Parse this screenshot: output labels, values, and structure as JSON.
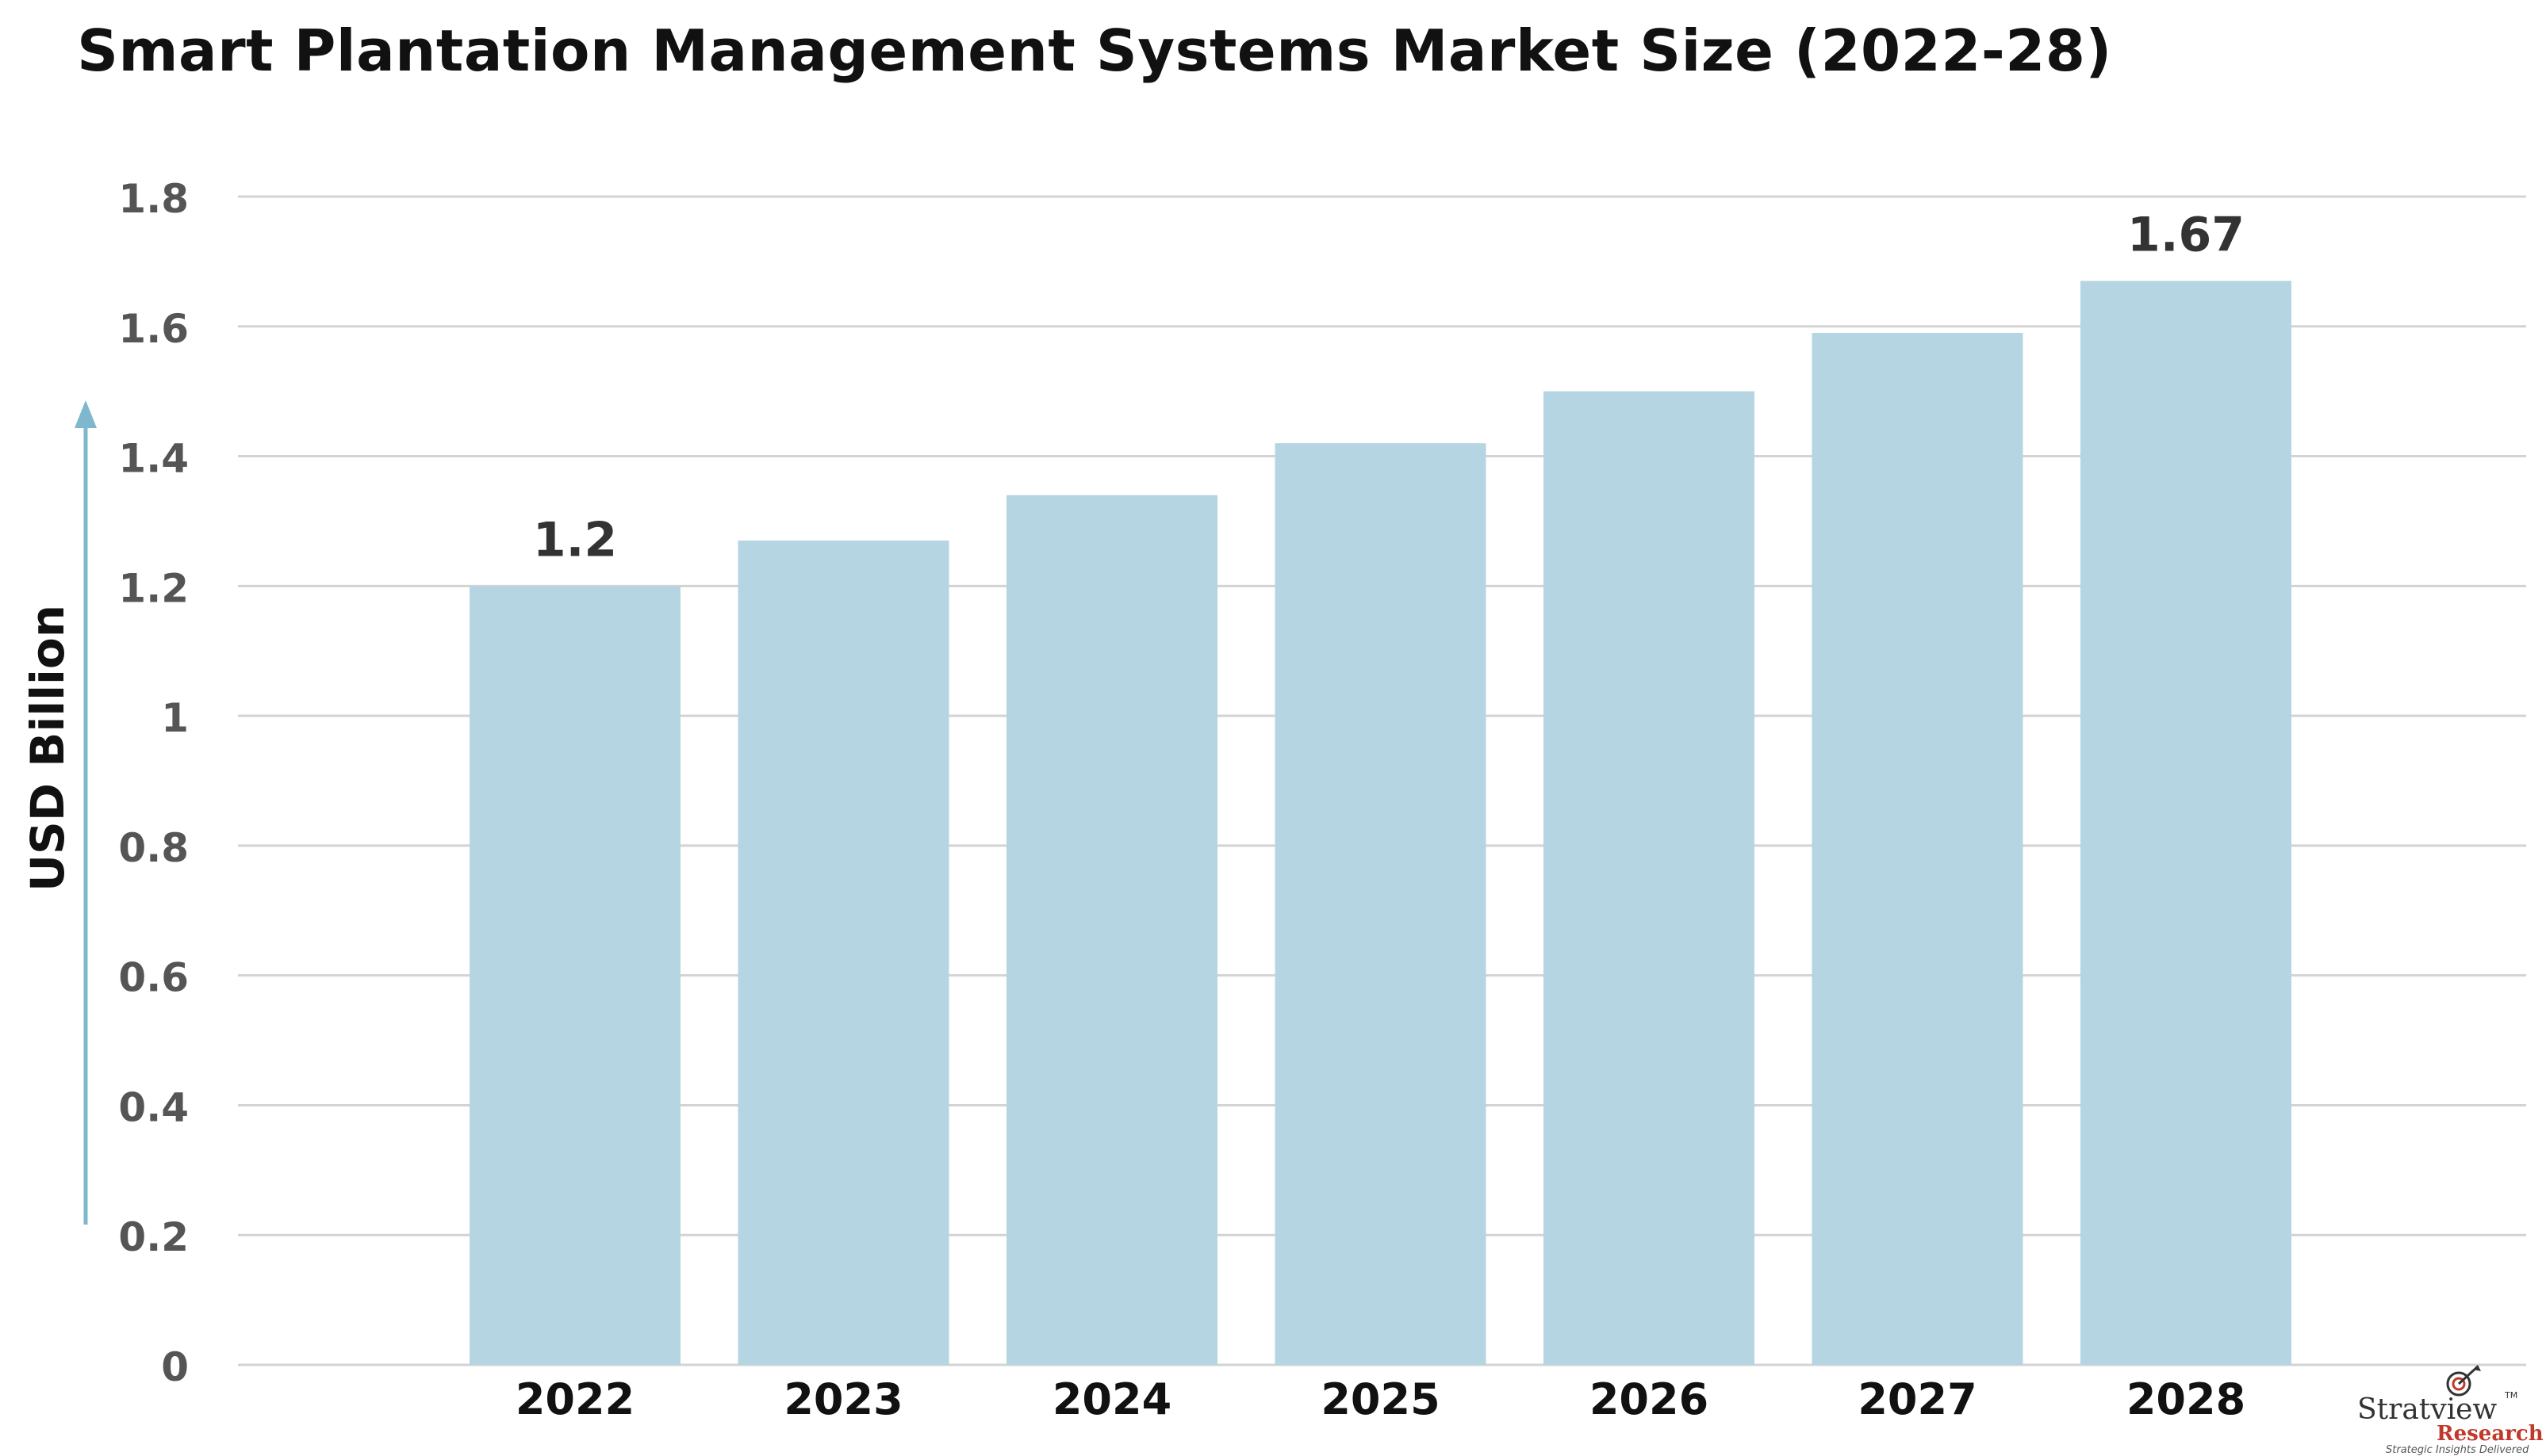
{
  "chart_data": {
    "type": "bar",
    "title": "Smart Plantation Management Systems Market Size (2022-28)",
    "xlabel": "",
    "ylabel": "USD Billion",
    "categories": [
      "2022",
      "2023",
      "2024",
      "2025",
      "2026",
      "2027",
      "2028"
    ],
    "values": [
      1.2,
      1.27,
      1.34,
      1.42,
      1.5,
      1.59,
      1.67
    ],
    "data_labels": [
      {
        "category": "2022",
        "text": "1.2"
      },
      {
        "category": "2028",
        "text": "1.67"
      }
    ],
    "yticks": [
      "0",
      "0.2",
      "0.4",
      "0.6",
      "0.8",
      "1",
      "1.2",
      "1.4",
      "1.6",
      "1.8"
    ],
    "ylim": [
      0,
      1.8
    ],
    "grid": true,
    "legend": "none",
    "bar_color": "#b5d5e3",
    "grid_color": "#d3d3d3",
    "axis_arrow_color": "#7fb7cc"
  },
  "logo": {
    "name": "Stratview",
    "sub": "Research",
    "trademark": "TM",
    "tagline": "Strategic Insights Delivered"
  }
}
